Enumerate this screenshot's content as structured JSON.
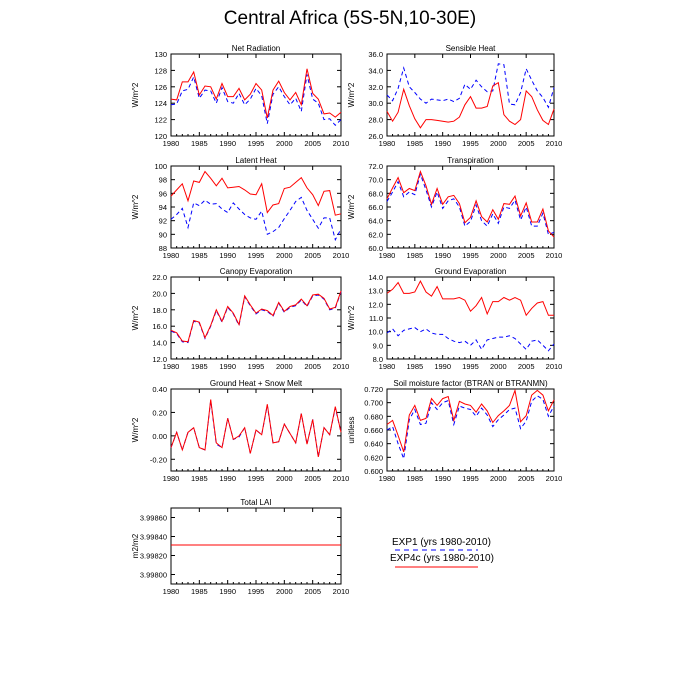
{
  "title": "Central Africa (5S-5N,10-30E)",
  "colors": {
    "exp1": "#0000ff",
    "exp4c": "#ff0000",
    "axis": "#000000"
  },
  "legend": {
    "exp1": "EXP1 (yrs 1980-2010)",
    "exp4c": "EXP4c (yrs 1980-2010)"
  },
  "chart_data": [
    {
      "type": "line",
      "title": "Net Radiation",
      "ylabel": "W/m^2",
      "xlim": [
        1980,
        2010
      ],
      "ylim": [
        120,
        130
      ],
      "xticks": [
        1980,
        1985,
        1990,
        1995,
        2000,
        2005,
        2010
      ],
      "yticks": [
        120,
        122,
        124,
        126,
        128,
        130
      ],
      "ytick_labels": [
        "120",
        "122",
        "124",
        "126",
        "128",
        "130"
      ],
      "x": [
        1980,
        1981,
        1982,
        1983,
        1984,
        1985,
        1986,
        1987,
        1988,
        1989,
        1990,
        1991,
        1992,
        1993,
        1994,
        1995,
        1996,
        1997,
        1998,
        1999,
        2000,
        2001,
        2002,
        2003,
        2004,
        2005,
        2006,
        2007,
        2008,
        2009,
        2010
      ],
      "series": [
        {
          "name": "EXP1",
          "values": [
            123.8,
            123.9,
            125.5,
            125.7,
            127.2,
            124.6,
            125.6,
            125.5,
            124.0,
            125.9,
            124.2,
            124.0,
            125.2,
            123.8,
            124.5,
            125.8,
            124.9,
            121.5,
            125.1,
            126.0,
            124.8,
            123.8,
            124.6,
            123.0,
            127.5,
            124.5,
            124.0,
            122.0,
            122.1,
            121.3,
            122.0
          ]
        },
        {
          "name": "EXP4c",
          "values": [
            124.5,
            124.4,
            126.6,
            126.6,
            127.8,
            125.0,
            126.1,
            126.0,
            124.5,
            126.4,
            124.8,
            124.8,
            125.8,
            124.4,
            125.1,
            126.4,
            125.6,
            122.2,
            125.6,
            126.7,
            125.3,
            124.4,
            125.3,
            123.8,
            128.2,
            125.2,
            124.5,
            122.7,
            122.8,
            122.3,
            122.9
          ]
        }
      ]
    },
    {
      "type": "line",
      "title": "Sensible Heat",
      "ylabel": "W/m^2",
      "xlim": [
        1980,
        2010
      ],
      "ylim": [
        26,
        36
      ],
      "xticks": [
        1980,
        1985,
        1990,
        1995,
        2000,
        2005,
        2010
      ],
      "yticks": [
        26,
        28,
        30,
        32,
        34,
        36
      ],
      "ytick_labels": [
        "26.0",
        "28.0",
        "30.0",
        "32.0",
        "34.0",
        "36.0"
      ],
      "x": [
        1980,
        1981,
        1982,
        1983,
        1984,
        1985,
        1986,
        1987,
        1988,
        1989,
        1990,
        1991,
        1992,
        1993,
        1994,
        1995,
        1996,
        1997,
        1998,
        1999,
        2000,
        2001,
        2002,
        2003,
        2004,
        2005,
        2006,
        2007,
        2008,
        2009,
        2010
      ],
      "series": [
        {
          "name": "EXP1",
          "values": [
            31.0,
            30.3,
            31.8,
            34.3,
            32.0,
            31.3,
            30.5,
            30.0,
            30.5,
            30.4,
            30.3,
            30.5,
            30.2,
            30.6,
            32.3,
            31.7,
            32.8,
            32.0,
            31.4,
            31.5,
            34.8,
            34.7,
            29.9,
            29.8,
            31.3,
            34.2,
            32.8,
            31.5,
            30.7,
            29.5,
            31.9
          ]
        },
        {
          "name": "EXP4c",
          "values": [
            29.0,
            27.8,
            28.9,
            31.7,
            29.7,
            28.1,
            27.0,
            28.0,
            28.0,
            27.9,
            27.8,
            27.7,
            27.8,
            28.3,
            29.8,
            30.8,
            29.4,
            29.4,
            29.6,
            32.1,
            32.5,
            28.6,
            27.8,
            27.4,
            28.0,
            31.5,
            30.8,
            29.2,
            27.9,
            27.4,
            29.3
          ]
        }
      ]
    },
    {
      "type": "line",
      "title": "Latent Heat",
      "ylabel": "W/m^2",
      "xlim": [
        1980,
        2010
      ],
      "ylim": [
        88,
        100
      ],
      "xticks": [
        1980,
        1985,
        1990,
        1995,
        2000,
        2005,
        2010
      ],
      "yticks": [
        88,
        90,
        92,
        94,
        96,
        98,
        100
      ],
      "ytick_labels": [
        "88",
        "90",
        "92",
        "94",
        "96",
        "98",
        "100"
      ],
      "x": [
        1980,
        1981,
        1982,
        1983,
        1984,
        1985,
        1986,
        1987,
        1988,
        1989,
        1990,
        1991,
        1992,
        1993,
        1994,
        1995,
        1996,
        1997,
        1998,
        1999,
        2000,
        2001,
        2002,
        2003,
        2004,
        2005,
        2006,
        2007,
        2008,
        2009,
        2010
      ],
      "series": [
        {
          "name": "EXP1",
          "values": [
            92.2,
            92.9,
            93.8,
            91.0,
            94.6,
            94.2,
            95.0,
            94.4,
            94.5,
            93.7,
            93.2,
            94.6,
            93.7,
            92.9,
            92.4,
            92.2,
            93.4,
            90.0,
            90.4,
            91.0,
            92.3,
            93.5,
            94.8,
            95.4,
            93.5,
            92.2,
            90.9,
            92.4,
            92.4,
            89.2,
            90.8
          ]
        },
        {
          "name": "EXP4c",
          "values": [
            95.6,
            96.5,
            97.4,
            94.9,
            97.8,
            97.6,
            99.2,
            98.2,
            97.1,
            98.2,
            96.8,
            96.9,
            97.0,
            96.5,
            95.9,
            95.8,
            97.4,
            93.2,
            94.3,
            94.5,
            96.7,
            96.9,
            97.6,
            98.3,
            96.8,
            95.8,
            94.2,
            96.3,
            96.4,
            92.8,
            93.0
          ]
        }
      ]
    },
    {
      "type": "line",
      "title": "Transpiration",
      "ylabel": "W/m^2",
      "xlim": [
        1980,
        2010
      ],
      "ylim": [
        60,
        72
      ],
      "xticks": [
        1980,
        1985,
        1990,
        1995,
        2000,
        2005,
        2010
      ],
      "yticks": [
        60,
        62,
        64,
        66,
        68,
        70,
        72
      ],
      "ytick_labels": [
        "60.0",
        "62.0",
        "64.0",
        "66.0",
        "68.0",
        "70.0",
        "72.0"
      ],
      "x": [
        1980,
        1981,
        1982,
        1983,
        1984,
        1985,
        1986,
        1987,
        1988,
        1989,
        1990,
        1991,
        1992,
        1993,
        1994,
        1995,
        1996,
        1997,
        1998,
        1999,
        2000,
        2001,
        2002,
        2003,
        2004,
        2005,
        2006,
        2007,
        2008,
        2009,
        2010
      ],
      "series": [
        {
          "name": "EXP1",
          "values": [
            66.8,
            68.2,
            69.7,
            67.5,
            68.2,
            67.8,
            70.8,
            68.5,
            66.0,
            68.2,
            65.8,
            66.9,
            67.2,
            66.0,
            63.2,
            63.9,
            66.3,
            64.0,
            63.2,
            65.0,
            63.6,
            66.0,
            65.8,
            67.0,
            64.1,
            66.0,
            63.2,
            63.2,
            65.1,
            62.0,
            62.3
          ]
        },
        {
          "name": "EXP4c",
          "values": [
            67.2,
            68.8,
            70.3,
            68.1,
            68.7,
            68.4,
            71.2,
            69.1,
            66.4,
            68.7,
            66.4,
            67.5,
            67.7,
            66.5,
            63.7,
            64.5,
            66.9,
            64.6,
            63.8,
            65.6,
            64.2,
            66.5,
            66.4,
            67.6,
            64.7,
            66.6,
            63.8,
            63.8,
            65.7,
            62.5,
            61.6
          ]
        }
      ]
    },
    {
      "type": "line",
      "title": "Canopy Evaporation",
      "ylabel": "W/m^2",
      "xlim": [
        1980,
        2010
      ],
      "ylim": [
        12,
        22
      ],
      "xticks": [
        1980,
        1985,
        1990,
        1995,
        2000,
        2005,
        2010
      ],
      "yticks": [
        12,
        14,
        16,
        18,
        20,
        22
      ],
      "ytick_labels": [
        "12.0",
        "14.0",
        "16.0",
        "18.0",
        "20.0",
        "22.0"
      ],
      "x": [
        1980,
        1981,
        1982,
        1983,
        1984,
        1985,
        1986,
        1987,
        1988,
        1989,
        1990,
        1991,
        1992,
        1993,
        1994,
        1995,
        1996,
        1997,
        1998,
        1999,
        2000,
        2001,
        2002,
        2003,
        2004,
        2005,
        2006,
        2007,
        2008,
        2009,
        2010
      ],
      "series": [
        {
          "name": "EXP1",
          "values": [
            15.4,
            15.1,
            14.1,
            14.0,
            16.6,
            16.4,
            14.5,
            16.0,
            17.9,
            16.5,
            18.3,
            17.5,
            16.1,
            19.6,
            18.5,
            17.5,
            18.0,
            17.8,
            17.2,
            18.8,
            17.7,
            18.3,
            18.5,
            19.2,
            18.4,
            19.7,
            19.8,
            19.3,
            18.0,
            18.2,
            20.2
          ]
        },
        {
          "name": "EXP4c",
          "values": [
            15.5,
            15.2,
            14.2,
            14.1,
            16.7,
            16.5,
            14.6,
            16.1,
            18.0,
            16.6,
            18.4,
            17.6,
            16.2,
            19.7,
            18.6,
            17.6,
            18.1,
            17.9,
            17.3,
            18.9,
            17.8,
            18.4,
            18.6,
            19.3,
            18.5,
            19.8,
            19.9,
            19.4,
            18.1,
            18.3,
            20.3
          ]
        }
      ]
    },
    {
      "type": "line",
      "title": "Ground Evaporation",
      "ylabel": "W/m^2",
      "xlim": [
        1980,
        2010
      ],
      "ylim": [
        8,
        14
      ],
      "xticks": [
        1980,
        1985,
        1990,
        1995,
        2000,
        2005,
        2010
      ],
      "yticks": [
        8,
        9,
        10,
        11,
        12,
        13,
        14
      ],
      "ytick_labels": [
        "8.0",
        "9.0",
        "10.0",
        "11.0",
        "12.0",
        "13.0",
        "14.0"
      ],
      "x": [
        1980,
        1981,
        1982,
        1983,
        1984,
        1985,
        1986,
        1987,
        1988,
        1989,
        1990,
        1991,
        1992,
        1993,
        1994,
        1995,
        1996,
        1997,
        1998,
        1999,
        2000,
        2001,
        2002,
        2003,
        2004,
        2005,
        2006,
        2007,
        2008,
        2009,
        2010
      ],
      "series": [
        {
          "name": "EXP1",
          "values": [
            9.9,
            10.2,
            9.7,
            10.1,
            10.2,
            10.3,
            10.0,
            10.2,
            9.9,
            9.8,
            9.8,
            9.5,
            9.3,
            9.2,
            9.3,
            9.0,
            9.4,
            8.7,
            9.4,
            9.5,
            9.6,
            9.6,
            9.7,
            9.5,
            9.1,
            8.7,
            9.3,
            9.4,
            9.0,
            8.6,
            9.1
          ]
        },
        {
          "name": "EXP4c",
          "values": [
            12.8,
            13.1,
            13.6,
            12.8,
            12.8,
            12.9,
            13.7,
            12.9,
            12.6,
            13.3,
            12.4,
            12.4,
            12.4,
            12.5,
            12.3,
            11.5,
            11.9,
            12.5,
            11.3,
            12.2,
            12.2,
            12.5,
            12.3,
            12.5,
            12.3,
            11.2,
            11.7,
            12.1,
            12.2,
            11.2,
            11.2
          ]
        }
      ]
    },
    {
      "type": "line",
      "title": "Ground Heat + Snow Melt",
      "ylabel": "W/m^2",
      "xlim": [
        1980,
        2010
      ],
      "ylim": [
        -0.3,
        0.4
      ],
      "xticks": [
        1980,
        1985,
        1990,
        1995,
        2000,
        2005,
        2010
      ],
      "yticks": [
        -0.2,
        0.0,
        0.2,
        0.4
      ],
      "ytick_labels": [
        "-0.20",
        "0.00",
        "0.20",
        "0.40"
      ],
      "x": [
        1980,
        1981,
        1982,
        1983,
        1984,
        1985,
        1986,
        1987,
        1988,
        1989,
        1990,
        1991,
        1992,
        1993,
        1994,
        1995,
        1996,
        1997,
        1998,
        1999,
        2000,
        2001,
        2002,
        2003,
        2004,
        2005,
        2006,
        2007,
        2008,
        2009,
        2010
      ],
      "series": [
        {
          "name": "EXP1",
          "values": [
            -0.1,
            0.03,
            -0.12,
            0.03,
            0.07,
            -0.1,
            -0.12,
            0.3,
            -0.07,
            -0.1,
            0.15,
            -0.03,
            -0.01,
            0.07,
            -0.15,
            0.05,
            0.01,
            0.26,
            -0.06,
            -0.05,
            0.1,
            0.02,
            -0.06,
            0.19,
            -0.07,
            0.14,
            -0.18,
            0.07,
            0.01,
            0.24,
            0.03
          ]
        },
        {
          "name": "EXP4c",
          "values": [
            -0.1,
            0.03,
            -0.12,
            0.03,
            0.07,
            -0.1,
            -0.12,
            0.31,
            -0.06,
            -0.1,
            0.15,
            -0.03,
            0.0,
            0.07,
            -0.15,
            0.05,
            0.01,
            0.27,
            -0.06,
            -0.05,
            0.1,
            0.02,
            -0.06,
            0.19,
            -0.07,
            0.14,
            -0.18,
            0.07,
            0.01,
            0.25,
            0.03
          ]
        }
      ]
    },
    {
      "type": "line",
      "title": "Soil moisture factor (BTRAN or BTRANMN)",
      "ylabel": "unitless",
      "xlim": [
        1980,
        2010
      ],
      "ylim": [
        0.6,
        0.72
      ],
      "xticks": [
        1980,
        1985,
        1990,
        1995,
        2000,
        2005,
        2010
      ],
      "yticks": [
        0.6,
        0.62,
        0.64,
        0.66,
        0.68,
        0.7,
        0.72
      ],
      "ytick_labels": [
        "0.600",
        "0.620",
        "0.640",
        "0.660",
        "0.680",
        "0.700",
        "0.720"
      ],
      "x": [
        1980,
        1981,
        1982,
        1983,
        1984,
        1985,
        1986,
        1987,
        1988,
        1989,
        1990,
        1991,
        1992,
        1993,
        1994,
        1995,
        1996,
        1997,
        1998,
        1999,
        2000,
        2001,
        2002,
        2003,
        2004,
        2005,
        2006,
        2007,
        2008,
        2009,
        2010
      ],
      "series": [
        {
          "name": "EXP1",
          "values": [
            0.66,
            0.665,
            0.64,
            0.618,
            0.675,
            0.69,
            0.668,
            0.67,
            0.7,
            0.69,
            0.7,
            0.703,
            0.668,
            0.695,
            0.692,
            0.69,
            0.68,
            0.692,
            0.682,
            0.665,
            0.675,
            0.682,
            0.69,
            0.692,
            0.662,
            0.673,
            0.702,
            0.71,
            0.705,
            0.68,
            0.695
          ]
        },
        {
          "name": "EXP4c",
          "values": [
            0.668,
            0.674,
            0.652,
            0.628,
            0.682,
            0.696,
            0.674,
            0.677,
            0.706,
            0.696,
            0.706,
            0.709,
            0.674,
            0.702,
            0.698,
            0.696,
            0.686,
            0.698,
            0.688,
            0.671,
            0.681,
            0.688,
            0.696,
            0.718,
            0.672,
            0.681,
            0.711,
            0.718,
            0.711,
            0.688,
            0.704
          ]
        }
      ]
    },
    {
      "type": "line",
      "title": "Total LAI",
      "ylabel": "m2/m2",
      "xlim": [
        1980,
        2010
      ],
      "ylim": [
        3.9979,
        3.9987
      ],
      "xticks": [
        1980,
        1985,
        1990,
        1995,
        2000,
        2005,
        2010
      ],
      "yticks": [
        3.998,
        3.9982,
        3.9984,
        3.9986
      ],
      "ytick_labels": [
        "3.99800",
        "3.99820",
        "3.99840",
        "3.99860"
      ],
      "x": [
        1980,
        2010
      ],
      "series": [
        {
          "name": "EXP1",
          "values": [
            3.99831,
            3.99831
          ]
        },
        {
          "name": "EXP4c",
          "values": [
            3.99831,
            3.99831
          ]
        }
      ]
    }
  ]
}
